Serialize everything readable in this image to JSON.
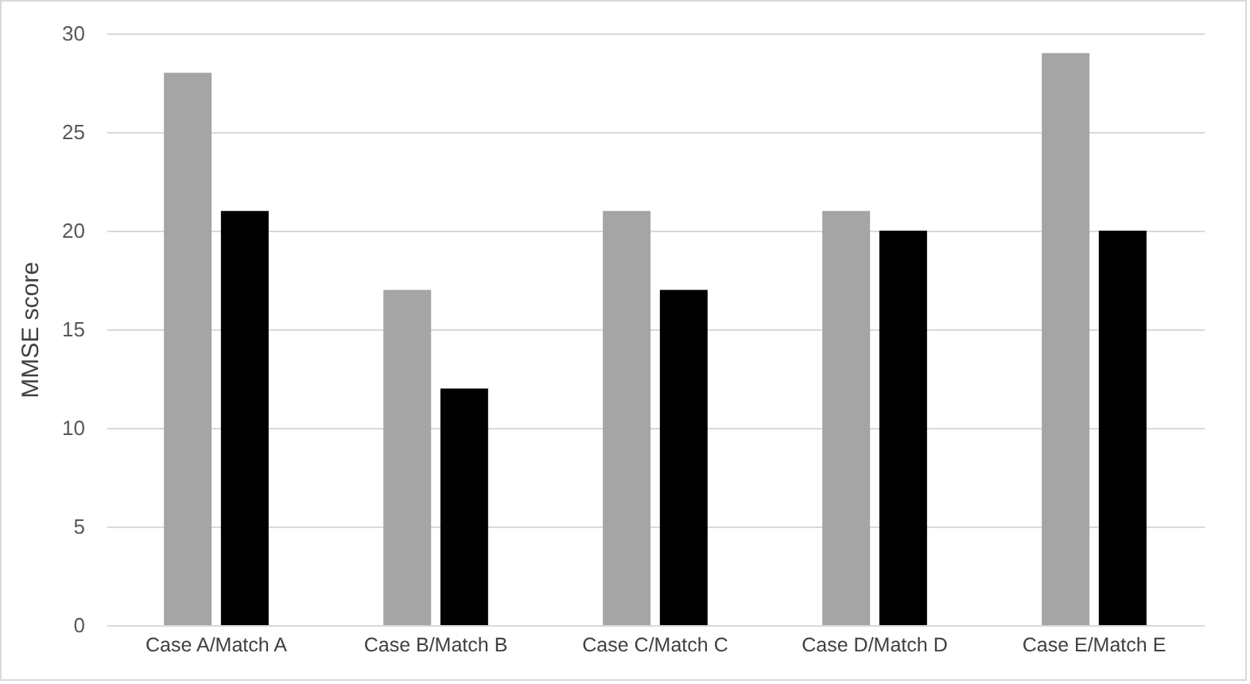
{
  "chart_data": {
    "type": "bar",
    "ylabel": "MMSE score",
    "categories": [
      "Case A/Match A",
      "Case B/Match B",
      "Case C/Match C",
      "Case D/Match D",
      "Case E/Match E"
    ],
    "series": [
      {
        "color": "#a5a5a5",
        "values": [
          28,
          17,
          21,
          21,
          29
        ]
      },
      {
        "color": "#000000",
        "values": [
          21,
          12,
          17,
          20,
          20
        ]
      }
    ],
    "ylim": [
      0,
      30
    ],
    "yticks": [
      0,
      5,
      10,
      15,
      20,
      25,
      30
    ],
    "grid": "y",
    "legend": false
  }
}
